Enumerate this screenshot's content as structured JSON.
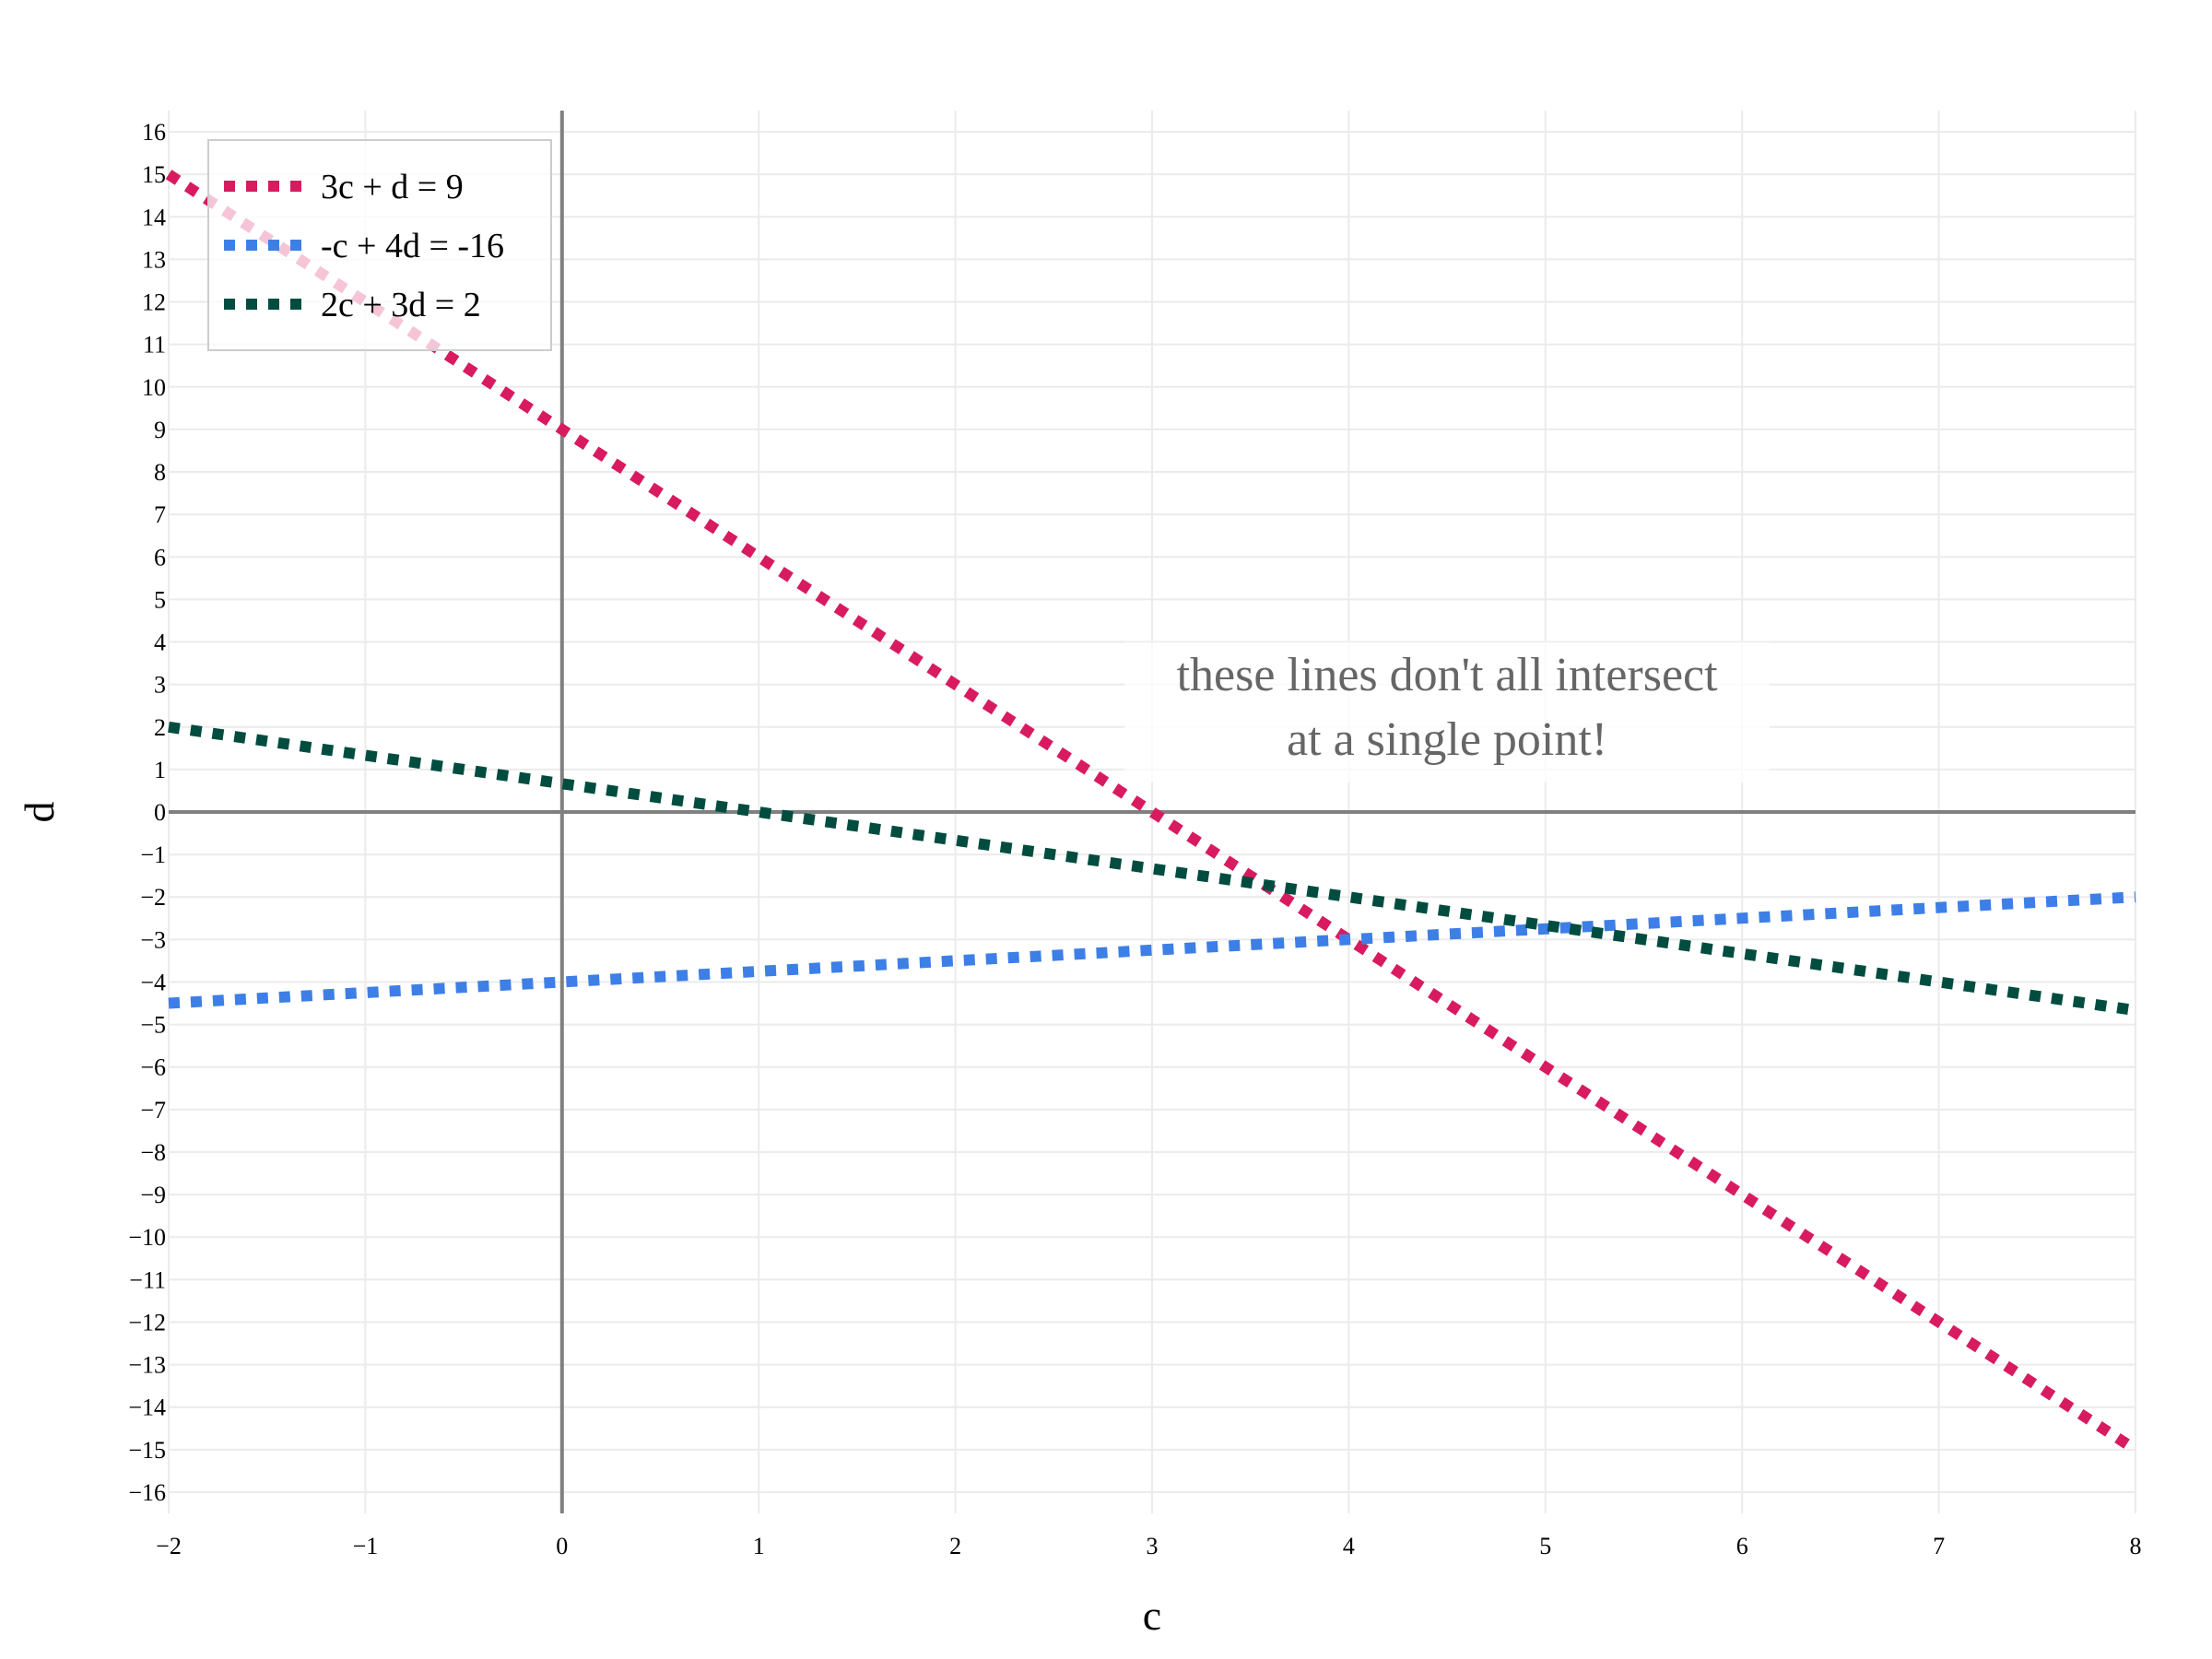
{
  "chart_data": {
    "type": "line",
    "xlabel": "c",
    "ylabel": "d",
    "xlim": [
      -2,
      8
    ],
    "ylim": [
      -16.5,
      16.5
    ],
    "x_ticks": [
      -2,
      -1,
      0,
      1,
      2,
      3,
      4,
      5,
      6,
      7,
      8
    ],
    "y_ticks": [
      16,
      15,
      14,
      13,
      12,
      11,
      10,
      9,
      8,
      7,
      6,
      5,
      4,
      3,
      2,
      1,
      0,
      -1,
      -2,
      -3,
      -4,
      -5,
      -6,
      -7,
      -8,
      -9,
      -10,
      -11,
      -12,
      -13,
      -14,
      -15,
      -16
    ],
    "x_tick_labels": [
      "−2",
      "−1",
      "0",
      "1",
      "2",
      "3",
      "4",
      "5",
      "6",
      "7",
      "8"
    ],
    "y_tick_labels": [
      "16",
      "15",
      "14",
      "13",
      "12",
      "11",
      "10",
      "9",
      "8",
      "7",
      "6",
      "5",
      "4",
      "3",
      "2",
      "1",
      "0",
      "−1",
      "−2",
      "−3",
      "−4",
      "−5",
      "−6",
      "−7",
      "−8",
      "−9",
      "−10",
      "−11",
      "−12",
      "−13",
      "−14",
      "−15",
      "−16"
    ],
    "grid": true,
    "legend_position": "top-left",
    "series": [
      {
        "name": "3c + d = 9",
        "color": "#d81b60",
        "dash": "dotted",
        "x": [
          -2,
          8
        ],
        "y": [
          15,
          -15
        ]
      },
      {
        "name": "-c + 4d = -16",
        "color": "#3d7fe6",
        "dash": "dotted",
        "x": [
          -2,
          8
        ],
        "y": [
          -4.5,
          -2
        ]
      },
      {
        "name": "2c + 3d = 2",
        "color": "#004d40",
        "dash": "dotted",
        "x": [
          -2,
          8
        ],
        "y": [
          2,
          -4.6667
        ]
      }
    ],
    "annotations": [
      {
        "lines": [
          "these lines don't all intersect",
          "at a single point!"
        ],
        "x": 4.5,
        "y": 2.0,
        "color": "#666666"
      }
    ]
  }
}
